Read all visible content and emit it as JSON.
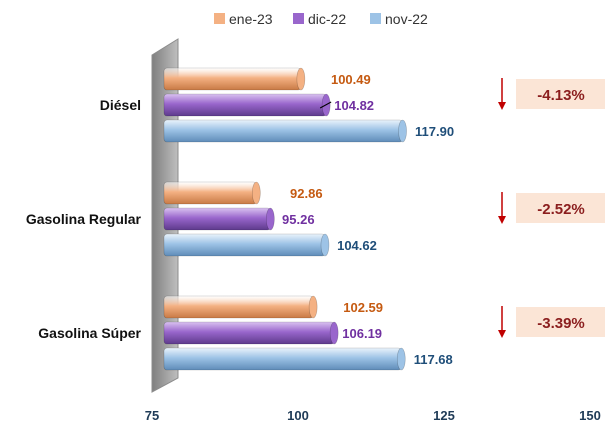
{
  "chart_data": {
    "type": "bar",
    "orientation": "horizontal",
    "categories": [
      "Diésel",
      "Gasolina Regular",
      "Gasolina Súper"
    ],
    "series": [
      {
        "name": "ene-23",
        "values": [
          100.49,
          92.86,
          102.59
        ],
        "color": "#f4b183",
        "label_color": "#c55a11"
      },
      {
        "name": "dic-22",
        "values": [
          104.82,
          95.26,
          106.19
        ],
        "color": "#9966cc",
        "label_color": "#7030a0"
      },
      {
        "name": "nov-22",
        "values": [
          117.9,
          104.62,
          117.68
        ],
        "color": "#9dc3e6",
        "label_color": "#1f4e79"
      }
    ],
    "data_labels": {
      "ene-23": [
        "100.49",
        "92.86",
        "102.59"
      ],
      "dic-22": [
        "104.82",
        "95.26",
        "106.19"
      ],
      "nov-22": [
        "117.90",
        "104.62",
        "117.68"
      ]
    },
    "changes": [
      "-4.13%",
      "-2.52%",
      "-3.39%"
    ],
    "change_direction": "down",
    "xlim": [
      75,
      150
    ],
    "xticks": [
      "75",
      "100",
      "125",
      "150"
    ],
    "grid": false,
    "legend_position": "top"
  },
  "colors": {
    "change_box": "#fbe5d6",
    "change_text": "#8b1e1e",
    "arrow": "#c00000",
    "wall": "#a6a6a6"
  }
}
